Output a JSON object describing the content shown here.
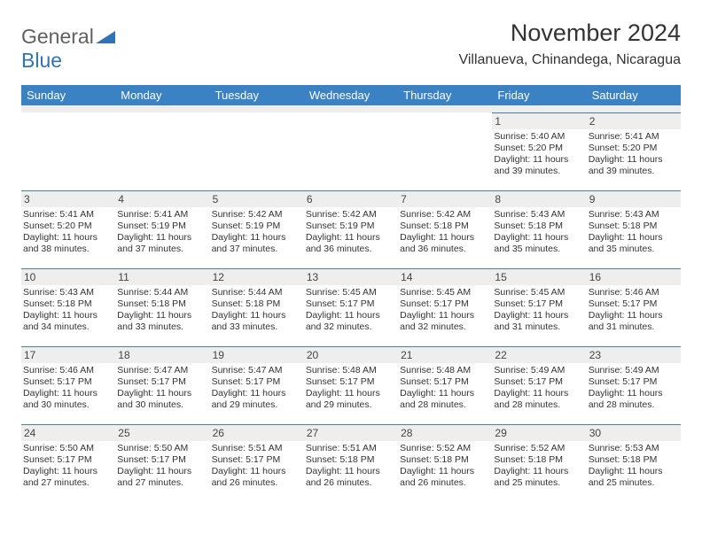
{
  "logo": {
    "word1": "General",
    "word2": "Blue"
  },
  "title": "November 2024",
  "location": "Villanueva, Chinandega, Nicaragua",
  "colors": {
    "header_bg": "#3b82c4",
    "header_text": "#ffffff",
    "daynum_bg": "#eeeeee",
    "border": "#3b82c4",
    "body_text": "#333333",
    "logo_gray": "#606060",
    "logo_blue": "#2f74b5"
  },
  "columns": [
    "Sunday",
    "Monday",
    "Tuesday",
    "Wednesday",
    "Thursday",
    "Friday",
    "Saturday"
  ],
  "weeks": [
    [
      null,
      null,
      null,
      null,
      null,
      {
        "n": "1",
        "sr": "5:40 AM",
        "ss": "5:20 PM",
        "dl": "11 hours and 39 minutes."
      },
      {
        "n": "2",
        "sr": "5:41 AM",
        "ss": "5:20 PM",
        "dl": "11 hours and 39 minutes."
      }
    ],
    [
      {
        "n": "3",
        "sr": "5:41 AM",
        "ss": "5:20 PM",
        "dl": "11 hours and 38 minutes."
      },
      {
        "n": "4",
        "sr": "5:41 AM",
        "ss": "5:19 PM",
        "dl": "11 hours and 37 minutes."
      },
      {
        "n": "5",
        "sr": "5:42 AM",
        "ss": "5:19 PM",
        "dl": "11 hours and 37 minutes."
      },
      {
        "n": "6",
        "sr": "5:42 AM",
        "ss": "5:19 PM",
        "dl": "11 hours and 36 minutes."
      },
      {
        "n": "7",
        "sr": "5:42 AM",
        "ss": "5:18 PM",
        "dl": "11 hours and 36 minutes."
      },
      {
        "n": "8",
        "sr": "5:43 AM",
        "ss": "5:18 PM",
        "dl": "11 hours and 35 minutes."
      },
      {
        "n": "9",
        "sr": "5:43 AM",
        "ss": "5:18 PM",
        "dl": "11 hours and 35 minutes."
      }
    ],
    [
      {
        "n": "10",
        "sr": "5:43 AM",
        "ss": "5:18 PM",
        "dl": "11 hours and 34 minutes."
      },
      {
        "n": "11",
        "sr": "5:44 AM",
        "ss": "5:18 PM",
        "dl": "11 hours and 33 minutes."
      },
      {
        "n": "12",
        "sr": "5:44 AM",
        "ss": "5:18 PM",
        "dl": "11 hours and 33 minutes."
      },
      {
        "n": "13",
        "sr": "5:45 AM",
        "ss": "5:17 PM",
        "dl": "11 hours and 32 minutes."
      },
      {
        "n": "14",
        "sr": "5:45 AM",
        "ss": "5:17 PM",
        "dl": "11 hours and 32 minutes."
      },
      {
        "n": "15",
        "sr": "5:45 AM",
        "ss": "5:17 PM",
        "dl": "11 hours and 31 minutes."
      },
      {
        "n": "16",
        "sr": "5:46 AM",
        "ss": "5:17 PM",
        "dl": "11 hours and 31 minutes."
      }
    ],
    [
      {
        "n": "17",
        "sr": "5:46 AM",
        "ss": "5:17 PM",
        "dl": "11 hours and 30 minutes."
      },
      {
        "n": "18",
        "sr": "5:47 AM",
        "ss": "5:17 PM",
        "dl": "11 hours and 30 minutes."
      },
      {
        "n": "19",
        "sr": "5:47 AM",
        "ss": "5:17 PM",
        "dl": "11 hours and 29 minutes."
      },
      {
        "n": "20",
        "sr": "5:48 AM",
        "ss": "5:17 PM",
        "dl": "11 hours and 29 minutes."
      },
      {
        "n": "21",
        "sr": "5:48 AM",
        "ss": "5:17 PM",
        "dl": "11 hours and 28 minutes."
      },
      {
        "n": "22",
        "sr": "5:49 AM",
        "ss": "5:17 PM",
        "dl": "11 hours and 28 minutes."
      },
      {
        "n": "23",
        "sr": "5:49 AM",
        "ss": "5:17 PM",
        "dl": "11 hours and 28 minutes."
      }
    ],
    [
      {
        "n": "24",
        "sr": "5:50 AM",
        "ss": "5:17 PM",
        "dl": "11 hours and 27 minutes."
      },
      {
        "n": "25",
        "sr": "5:50 AM",
        "ss": "5:17 PM",
        "dl": "11 hours and 27 minutes."
      },
      {
        "n": "26",
        "sr": "5:51 AM",
        "ss": "5:17 PM",
        "dl": "11 hours and 26 minutes."
      },
      {
        "n": "27",
        "sr": "5:51 AM",
        "ss": "5:18 PM",
        "dl": "11 hours and 26 minutes."
      },
      {
        "n": "28",
        "sr": "5:52 AM",
        "ss": "5:18 PM",
        "dl": "11 hours and 26 minutes."
      },
      {
        "n": "29",
        "sr": "5:52 AM",
        "ss": "5:18 PM",
        "dl": "11 hours and 25 minutes."
      },
      {
        "n": "30",
        "sr": "5:53 AM",
        "ss": "5:18 PM",
        "dl": "11 hours and 25 minutes."
      }
    ]
  ],
  "labels": {
    "sunrise": "Sunrise: ",
    "sunset": "Sunset: ",
    "daylight": "Daylight: "
  }
}
